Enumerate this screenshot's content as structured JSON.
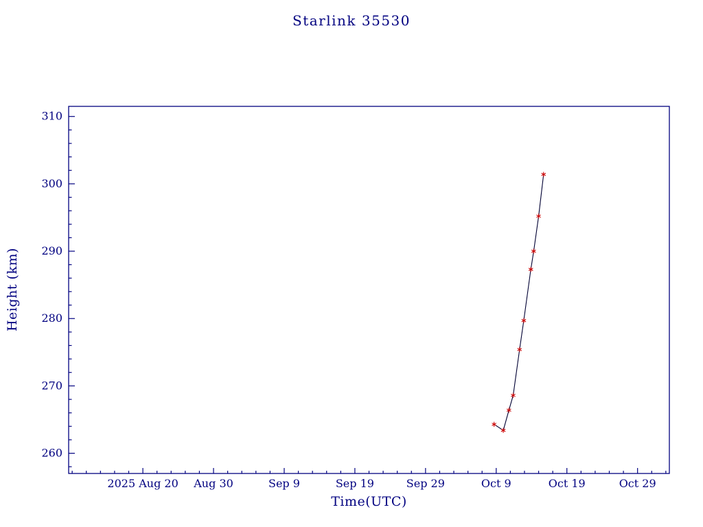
{
  "style": {
    "background": "#ffffff",
    "axis_color": "#000080",
    "text_color": "#000080",
    "line_color": "#000033",
    "marker_color": "#cc0000"
  },
  "chart_data": {
    "type": "line",
    "title": "Starlink 35530",
    "xlabel": "Time(UTC)",
    "ylabel": "Height (km)",
    "grid": false,
    "legend": false,
    "x_axis": {
      "unit": "days since 2025 Aug 20 (UTC)",
      "lim": [
        -10.5,
        74.5
      ],
      "major_ticks": [
        0,
        10,
        20,
        30,
        40,
        50,
        60,
        70
      ],
      "major_tick_labels": [
        "2025 Aug 20",
        "Aug 30",
        "Sep 9",
        "Sep 19",
        "Sep 29",
        "Oct 9",
        "Oct 19",
        "Oct 29"
      ],
      "minor_tick_step": 2
    },
    "y_axis": {
      "lim": [
        257,
        311.5
      ],
      "major_ticks": [
        260,
        270,
        280,
        290,
        300,
        310
      ],
      "minor_tick_step": 2
    },
    "series": [
      {
        "name": "Height (km)",
        "marker": "asterisk",
        "x": [
          49.7,
          51.0,
          51.8,
          52.4,
          53.3,
          53.9,
          54.9,
          55.3,
          56.0,
          56.7
        ],
        "y": [
          264.3,
          263.4,
          266.4,
          268.6,
          275.4,
          279.7,
          287.3,
          290.0,
          295.2,
          301.4
        ]
      }
    ]
  }
}
